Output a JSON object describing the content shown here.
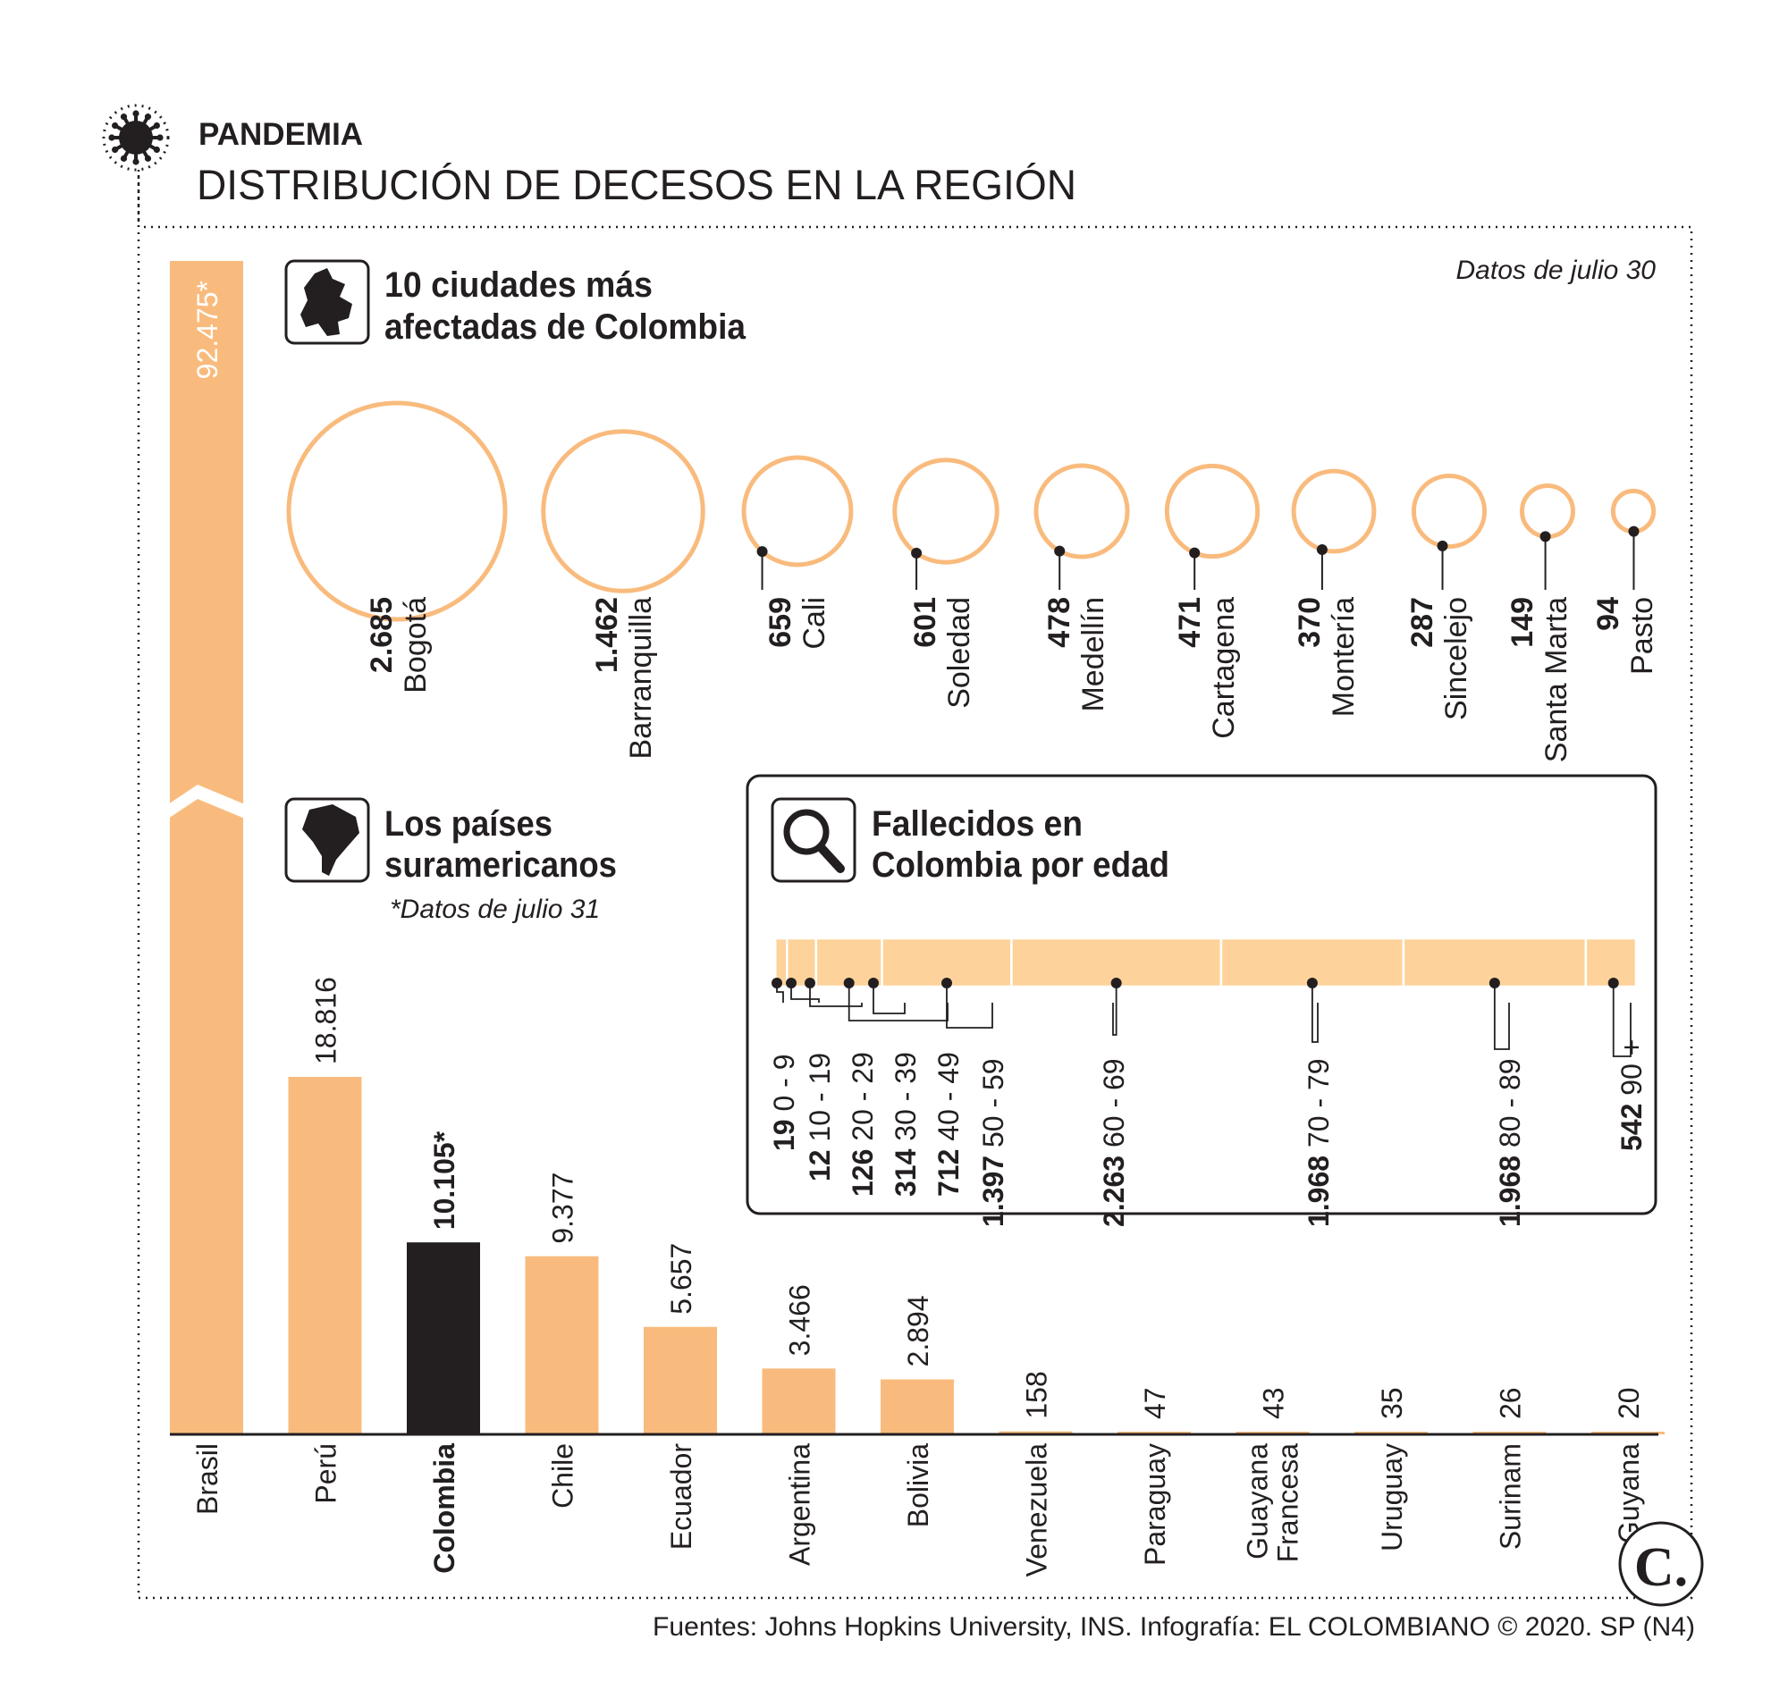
{
  "header": {
    "section": "PANDEMIA",
    "title": "DISTRIBUCIÓN DE DECESOS EN LA REGIÓN",
    "icon": "virus-icon"
  },
  "colors": {
    "accent": "#f9bb7d",
    "accent_light": "#fdd39b",
    "highlight": "#231f20",
    "text": "#231f20"
  },
  "chart_data": [
    {
      "type": "bubble",
      "title_line1": "10 ciudades más",
      "title_line2": "afectadas de Colombia",
      "note": "Datos de julio 30",
      "icon": "colombia-map-icon",
      "categories": [
        "Bogotá",
        "Barranquilla",
        "Cali",
        "Soledad",
        "Medellín",
        "Cartagena",
        "Montería",
        "Sincelejo",
        "Santa Marta",
        "Pasto"
      ],
      "values": [
        2685,
        1462,
        659,
        601,
        478,
        471,
        370,
        287,
        149,
        94
      ],
      "value_labels": [
        "2.685",
        "1.462",
        "659",
        "601",
        "478",
        "471",
        "370",
        "287",
        "149",
        "94"
      ]
    },
    {
      "type": "bar",
      "title_line1": "Los países",
      "title_line2": "suramericanos",
      "note": "*Datos de julio 31",
      "icon": "south-america-map-icon",
      "categories": [
        "Brasil",
        "Perú",
        "Colombia",
        "Chile",
        "Ecuador",
        "Argentina",
        "Bolivia",
        "Venezuela",
        "Paraguay",
        "Guayana Francesa",
        "Uruguay",
        "Surinam",
        "Guyana"
      ],
      "values": [
        92475,
        18816,
        10105,
        9377,
        5657,
        3466,
        2894,
        158,
        47,
        43,
        35,
        26,
        20
      ],
      "value_labels": [
        "92.475*",
        "18.816",
        "10.105*",
        "9.377",
        "5.657",
        "3.466",
        "2.894",
        "158",
        "47",
        "43",
        "35",
        "26",
        "20"
      ],
      "highlight": "Colombia",
      "broken_axis_first_bar": true
    },
    {
      "type": "bar-stacked-horizontal",
      "title_line1": "Fallecidos en",
      "title_line2": "Colombia por edad",
      "icon": "magnifier-icon",
      "categories": [
        "0 - 9",
        "10 - 19",
        "20 - 29",
        "30 - 39",
        "40 - 49",
        "50 - 59",
        "60 - 69",
        "70 - 79",
        "80 - 89",
        "90 +"
      ],
      "values": [
        19,
        12,
        126,
        314,
        712,
        1397,
        2263,
        1968,
        1968,
        542
      ],
      "value_labels": [
        "19",
        "12",
        "126",
        "314",
        "712",
        "1.397",
        "2.263",
        "1.968",
        "1.968",
        "542"
      ]
    }
  ],
  "footer": {
    "source": "Fuentes: Johns Hopkins University, INS. Infografía: EL COLOMBIANO © 2020. SP (N4)",
    "logo_letter": "C."
  }
}
